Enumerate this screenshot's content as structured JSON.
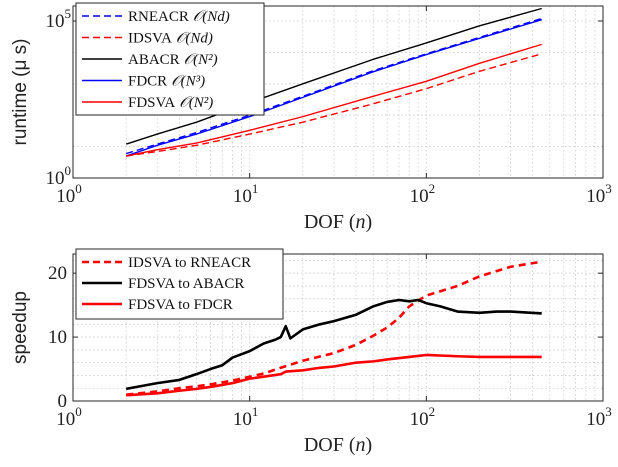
{
  "chart_data": [
    {
      "type": "line",
      "title": "",
      "xlabel": "DOF (n)",
      "xlabel_parts": [
        "DOF (",
        "n",
        ")"
      ],
      "ylabel": "runtime (μ s)",
      "xscale": "log",
      "yscale": "log",
      "xlim": [
        1,
        1000
      ],
      "ylim": [
        1,
        300000
      ],
      "x_ticks": [
        {
          "value": 1,
          "base": "10",
          "exp": "0"
        },
        {
          "value": 10,
          "base": "10",
          "exp": "1"
        },
        {
          "value": 100,
          "base": "10",
          "exp": "2"
        },
        {
          "value": 1000,
          "base": "10",
          "exp": "3"
        }
      ],
      "y_ticks": [
        {
          "value": 1,
          "base": "10",
          "exp": "0"
        },
        {
          "value": 100000,
          "base": "10",
          "exp": "5"
        }
      ],
      "grid": true,
      "legend_position": "top-left",
      "series": [
        {
          "name": "RNEACR",
          "complexity": "𝒪(Nd)",
          "color": "#0000ff",
          "dash": "dashed",
          "x": [
            2,
            3,
            5,
            10,
            20,
            50,
            100,
            200,
            450
          ],
          "y": [
            6,
            12,
            28,
            100,
            400,
            2600,
            9000,
            30000,
            120000
          ]
        },
        {
          "name": "IDSVA",
          "complexity": "𝒪(Nd)",
          "color": "#ff0000",
          "dash": "dashed",
          "x": [
            2,
            3,
            5,
            10,
            20,
            50,
            100,
            200,
            450
          ],
          "y": [
            5,
            7,
            11,
            25,
            60,
            230,
            700,
            2500,
            9000
          ]
        },
        {
          "name": "ABACR",
          "complexity": "𝒪(N²)",
          "color": "#000000",
          "dash": "solid",
          "x": [
            2,
            3,
            5,
            10,
            20,
            50,
            100,
            200,
            450
          ],
          "y": [
            12,
            25,
            60,
            250,
            1000,
            6000,
            20000,
            70000,
            250000
          ]
        },
        {
          "name": "FDCR",
          "complexity": "𝒪(N³)",
          "color": "#0000ff",
          "dash": "solid",
          "x": [
            2,
            3,
            5,
            10,
            20,
            50,
            100,
            200,
            450
          ],
          "y": [
            5,
            11,
            25,
            90,
            370,
            2400,
            8500,
            28000,
            110000
          ]
        },
        {
          "name": "FDSVA",
          "complexity": "𝒪(N²)",
          "color": "#ff0000",
          "dash": "solid",
          "x": [
            2,
            3,
            5,
            10,
            20,
            50,
            100,
            200,
            450
          ],
          "y": [
            5,
            8,
            13,
            33,
            90,
            400,
            1200,
            4500,
            18000
          ]
        }
      ]
    },
    {
      "type": "line",
      "title": "",
      "xlabel": "DOF (n)",
      "xlabel_parts": [
        "DOF (",
        "n",
        ")"
      ],
      "ylabel": "speedup",
      "xscale": "log",
      "yscale": "linear",
      "xlim": [
        1,
        1000
      ],
      "ylim": [
        0,
        23
      ],
      "x_ticks": [
        {
          "value": 1,
          "base": "10",
          "exp": "0"
        },
        {
          "value": 10,
          "base": "10",
          "exp": "1"
        },
        {
          "value": 100,
          "base": "10",
          "exp": "2"
        },
        {
          "value": 1000,
          "base": "10",
          "exp": "3"
        }
      ],
      "y_ticks": [
        {
          "value": 0,
          "label": "0"
        },
        {
          "value": 10,
          "label": "10"
        },
        {
          "value": 20,
          "label": "20"
        }
      ],
      "grid": true,
      "legend_position": "top-left",
      "series": [
        {
          "name": "IDSVA to RNEACR",
          "color": "#ff0000",
          "dash": "dashed",
          "x": [
            2,
            3,
            4,
            5,
            6,
            8,
            10,
            12,
            15,
            20,
            30,
            40,
            50,
            60,
            70,
            80,
            100,
            150,
            200,
            300,
            450
          ],
          "y": [
            1.0,
            1.5,
            2.0,
            2.3,
            2.6,
            3.2,
            3.8,
            4.3,
            5.2,
            6.3,
            7.5,
            8.8,
            10.2,
            11.5,
            13.0,
            14.8,
            16.5,
            18.0,
            19.5,
            21.0,
            21.8
          ]
        },
        {
          "name": "FDSVA to ABACR",
          "color": "#000000",
          "dash": "solid",
          "x": [
            2,
            3,
            4,
            5,
            6,
            7,
            8,
            10,
            12,
            14,
            15,
            16,
            17,
            20,
            25,
            30,
            40,
            50,
            60,
            70,
            80,
            90,
            100,
            120,
            150,
            200,
            250,
            300,
            450
          ],
          "y": [
            1.9,
            2.8,
            3.3,
            4.2,
            5.0,
            5.6,
            6.8,
            7.8,
            9.0,
            9.6,
            10.0,
            11.7,
            9.8,
            11.2,
            12.0,
            12.5,
            13.5,
            14.8,
            15.5,
            15.8,
            15.6,
            15.8,
            15.3,
            14.8,
            14.0,
            13.8,
            14.0,
            14.0,
            13.7
          ]
        },
        {
          "name": "FDSVA to FDCR",
          "color": "#ff0000",
          "dash": "solid",
          "x": [
            2,
            3,
            4,
            5,
            6,
            8,
            10,
            12,
            15,
            16,
            20,
            25,
            30,
            40,
            50,
            60,
            80,
            100,
            150,
            200,
            300,
            450
          ],
          "y": [
            0.9,
            1.2,
            1.6,
            1.9,
            2.2,
            2.8,
            3.5,
            3.8,
            4.2,
            4.6,
            4.8,
            5.2,
            5.4,
            6.0,
            6.2,
            6.5,
            6.9,
            7.2,
            7.0,
            6.9,
            6.9,
            6.9
          ]
        }
      ]
    }
  ]
}
